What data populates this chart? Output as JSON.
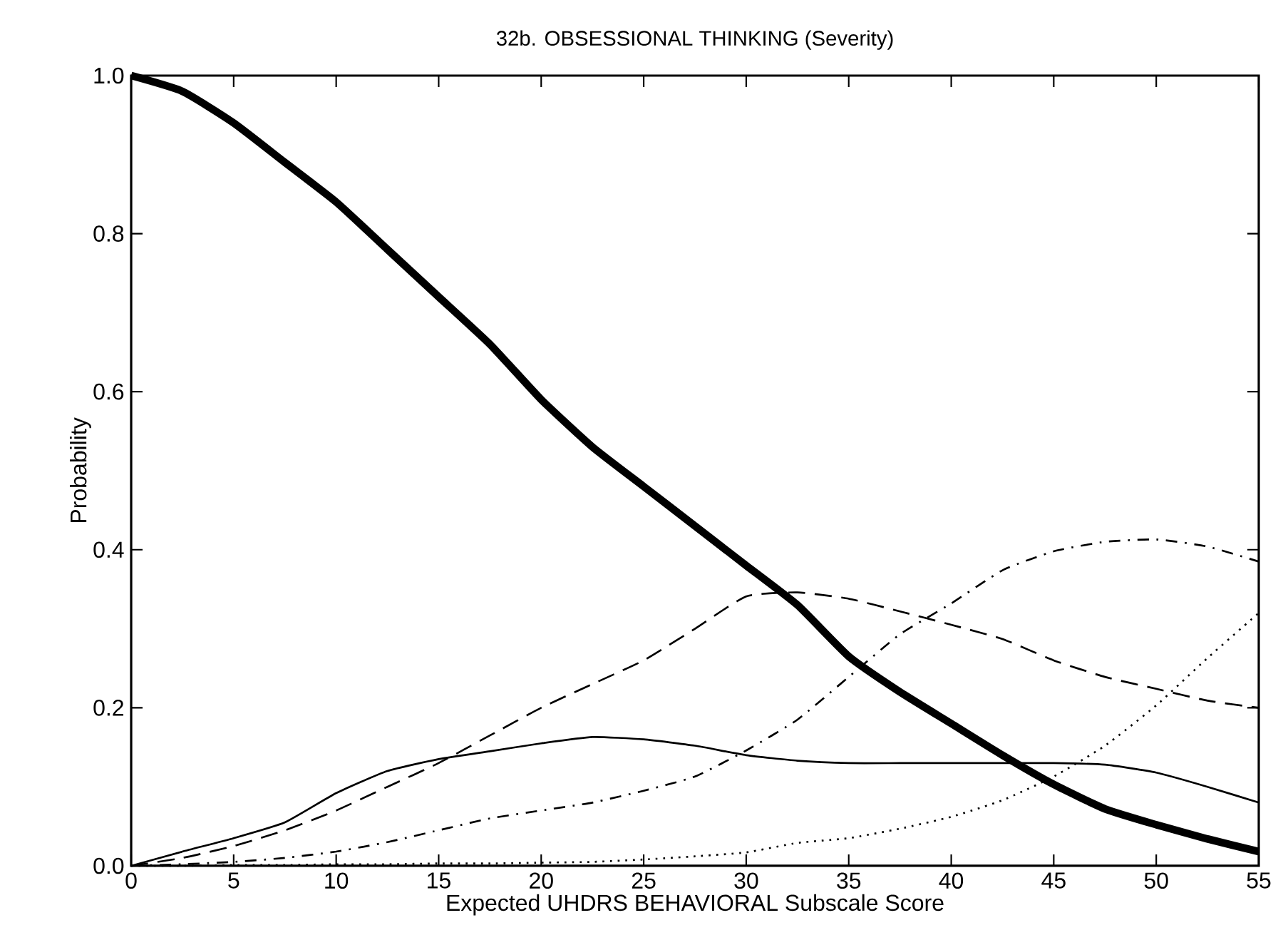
{
  "chart_data": {
    "type": "line",
    "title": "32b. OBSESSIONAL THINKING (Severity)",
    "xlabel": "Expected UHDRS BEHAVIORAL Subscale Score",
    "ylabel": "Probability",
    "x": [
      0,
      2.5,
      5,
      7.5,
      10,
      12.5,
      15,
      17.5,
      20,
      22.5,
      25,
      27.5,
      30,
      32.5,
      35,
      37.5,
      40,
      42.5,
      45,
      47.5,
      50,
      52.5,
      55
    ],
    "series": [
      {
        "color": "#000000",
        "line_style": "solid",
        "values": [
          1.0,
          0.98,
          0.94,
          0.89,
          0.84,
          0.78,
          0.72,
          0.66,
          0.59,
          0.53,
          0.48,
          0.43,
          0.38,
          0.33,
          0.265,
          0.22,
          0.18,
          0.14,
          0.103,
          0.072,
          0.052,
          0.034,
          0.018
        ]
      },
      {
        "color": "#000000",
        "line_style": "solid",
        "values": [
          0.0,
          0.018,
          0.035,
          0.055,
          0.092,
          0.12,
          0.135,
          0.145,
          0.155,
          0.163,
          0.16,
          0.152,
          0.14,
          0.133,
          0.13,
          0.13,
          0.13,
          0.13,
          0.13,
          0.128,
          0.118,
          0.1,
          0.08
        ]
      },
      {
        "color": "#000000",
        "line_style": "dashed",
        "values": [
          0.0,
          0.01,
          0.025,
          0.045,
          0.07,
          0.1,
          0.13,
          0.165,
          0.2,
          0.23,
          0.26,
          0.3,
          0.341,
          0.346,
          0.338,
          0.322,
          0.305,
          0.287,
          0.26,
          0.239,
          0.224,
          0.209,
          0.2
        ]
      },
      {
        "color": "#000000",
        "line_style": "dashdot",
        "values": [
          0.0,
          0.002,
          0.005,
          0.01,
          0.018,
          0.03,
          0.045,
          0.06,
          0.07,
          0.08,
          0.095,
          0.113,
          0.146,
          0.185,
          0.239,
          0.293,
          0.332,
          0.374,
          0.398,
          0.41,
          0.413,
          0.404,
          0.385
        ]
      },
      {
        "color": "#000000",
        "line_style": "dotted",
        "values": [
          0.0,
          0.0,
          0.001,
          0.001,
          0.002,
          0.002,
          0.003,
          0.003,
          0.004,
          0.005,
          0.008,
          0.012,
          0.017,
          0.029,
          0.035,
          0.047,
          0.062,
          0.083,
          0.113,
          0.152,
          0.203,
          0.263,
          0.32
        ]
      }
    ],
    "xlim": [
      0,
      55
    ],
    "xticks": [
      0,
      5,
      10,
      15,
      20,
      25,
      30,
      35,
      40,
      45,
      50,
      55
    ],
    "ylim": [
      0,
      1
    ],
    "yticks": [
      {
        "value": 0,
        "label": "0.0"
      },
      {
        "value": 0.2,
        "label": "0.2"
      },
      {
        "value": 0.4,
        "label": "0.4"
      },
      {
        "value": 0.6,
        "label": "0.6"
      },
      {
        "value": 0.8,
        "label": "0.8"
      },
      {
        "value": 1,
        "label": "1.0"
      }
    ],
    "grid": false,
    "marker": "none"
  }
}
